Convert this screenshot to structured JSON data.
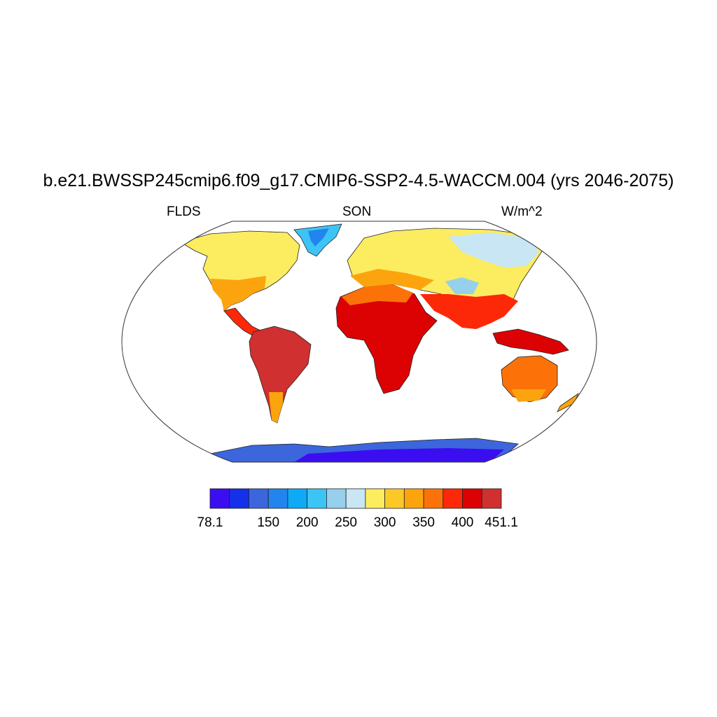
{
  "title": "b.e21.BWSSP245cmip6.f09_g17.CMIP6-SSP2-4.5-WACCM.004 (yrs 2046-2075)",
  "left_label": "FLDS",
  "center_label": "SON",
  "right_label": "W/m^2",
  "colorbar": {
    "colors": [
      "#3b0ef2",
      "#1430e8",
      "#3c66dc",
      "#2284ee",
      "#0eaaf8",
      "#3cc4f4",
      "#96d0ec",
      "#c8e6f4",
      "#fcec60",
      "#fcc828",
      "#fca40e",
      "#fc7208",
      "#fc2808",
      "#dc0204",
      "#d03030"
    ],
    "tick_labels": [
      "78.1",
      "150",
      "200",
      "250",
      "300",
      "350",
      "400",
      "451.1"
    ]
  }
}
